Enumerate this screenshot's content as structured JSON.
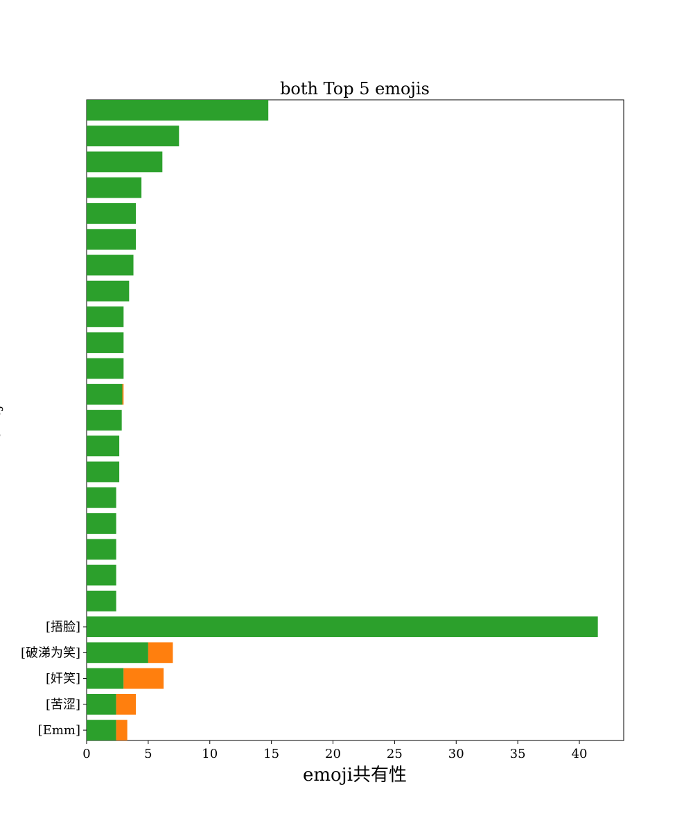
{
  "chart_data": {
    "type": "bar",
    "orientation": "horizontal",
    "stacked": true,
    "title": "both Top 5 emojis",
    "xlabel": "emoji共有性",
    "ylabel": "emoji",
    "xlim": [
      0,
      43.6
    ],
    "xticks": [
      0,
      5,
      10,
      15,
      20,
      25,
      30,
      35,
      40
    ],
    "grid": false,
    "categories": [
      "[Emm]",
      "[苦涩]",
      "[奸笑]",
      "[破涕为笑]",
      "[捂脸]",
      "",
      "",
      "",
      "",
      "",
      "",
      "",
      "",
      "",
      "",
      "",
      "",
      "",
      "",
      "",
      "",
      "",
      "",
      "",
      ""
    ],
    "series": [
      {
        "color": "#2ca02c",
        "values": [
          2.4,
          2.4,
          3.0,
          5.0,
          41.5,
          2.4,
          2.4,
          2.4,
          2.4,
          2.4,
          2.65,
          2.65,
          2.85,
          2.9,
          3.0,
          3.0,
          3.0,
          3.45,
          3.8,
          4.0,
          4.0,
          4.45,
          6.15,
          7.5,
          14.75
        ]
      },
      {
        "color": "#ff7f0e",
        "values": [
          0.9,
          1.6,
          3.25,
          2.0,
          0,
          0,
          0,
          0,
          0,
          0,
          0,
          0,
          0,
          0.1,
          0,
          0,
          0,
          0,
          0,
          0,
          0,
          0,
          0,
          0,
          0
        ]
      }
    ]
  }
}
